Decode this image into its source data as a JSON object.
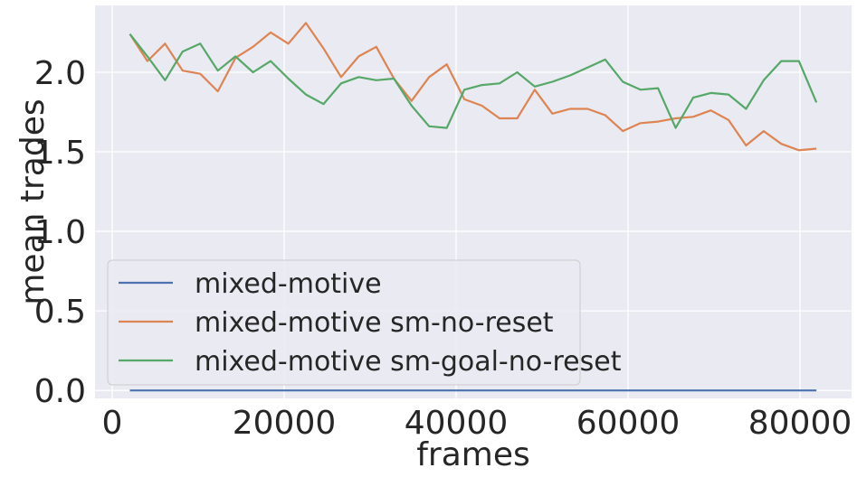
{
  "chart_data": {
    "type": "line",
    "title": "",
    "xlabel": "frames",
    "ylabel": "mean trades",
    "xlim": [
      -2000,
      86000
    ],
    "ylim": [
      -0.05,
      2.42
    ],
    "xticks": [
      0,
      20000,
      40000,
      60000,
      80000
    ],
    "xtick_labels": [
      "0",
      "20000",
      "40000",
      "60000",
      "80000"
    ],
    "yticks": [
      0.0,
      0.5,
      1.0,
      1.5,
      2.0
    ],
    "ytick_labels": [
      "0.0",
      "0.5",
      "1.0",
      "1.5",
      "2.0"
    ],
    "grid": true,
    "legend_position": "lower-left",
    "x": [
      2048,
      4096,
      6144,
      8192,
      10240,
      12288,
      14336,
      16384,
      18432,
      20480,
      22528,
      24576,
      26624,
      28672,
      30720,
      32768,
      34816,
      36864,
      38912,
      40960,
      43008,
      45056,
      47104,
      49152,
      51200,
      53248,
      55296,
      57344,
      59392,
      61440,
      63488,
      65536,
      67584,
      69632,
      71680,
      73728,
      75776,
      77824,
      79872,
      81920
    ],
    "series": [
      {
        "name": "mixed-motive",
        "color": "#4c72b0",
        "values": [
          0,
          0,
          0,
          0,
          0,
          0,
          0,
          0,
          0,
          0,
          0,
          0,
          0,
          0,
          0,
          0,
          0,
          0,
          0,
          0,
          0,
          0,
          0,
          0,
          0,
          0,
          0,
          0,
          0,
          0,
          0,
          0,
          0,
          0,
          0,
          0,
          0,
          0,
          0,
          0
        ]
      },
      {
        "name": "mixed-motive sm-no-reset",
        "color": "#dd8452",
        "values": [
          2.24,
          2.07,
          2.18,
          2.01,
          1.99,
          1.88,
          2.09,
          2.16,
          2.25,
          2.18,
          2.31,
          2.15,
          1.97,
          2.1,
          2.16,
          1.96,
          1.82,
          1.97,
          2.05,
          1.83,
          1.79,
          1.71,
          1.71,
          1.89,
          1.74,
          1.77,
          1.77,
          1.73,
          1.63,
          1.68,
          1.69,
          1.71,
          1.72,
          1.76,
          1.7,
          1.54,
          1.63,
          1.55,
          1.51,
          1.52
        ]
      },
      {
        "name": "mixed-motive sm-goal-no-reset",
        "color": "#55a868",
        "values": [
          2.24,
          2.1,
          1.95,
          2.13,
          2.18,
          2.01,
          2.1,
          2.0,
          2.07,
          1.96,
          1.86,
          1.8,
          1.93,
          1.97,
          1.95,
          1.96,
          1.79,
          1.66,
          1.65,
          1.89,
          1.92,
          1.93,
          2.0,
          1.91,
          1.94,
          1.98,
          2.03,
          2.08,
          1.94,
          1.89,
          1.9,
          1.65,
          1.84,
          1.87,
          1.86,
          1.77,
          1.95,
          2.07,
          2.07,
          1.81
        ]
      }
    ]
  },
  "colors": {
    "plot_background": "#eaeaf2",
    "grid": "#ffffff",
    "text": "#262626"
  }
}
